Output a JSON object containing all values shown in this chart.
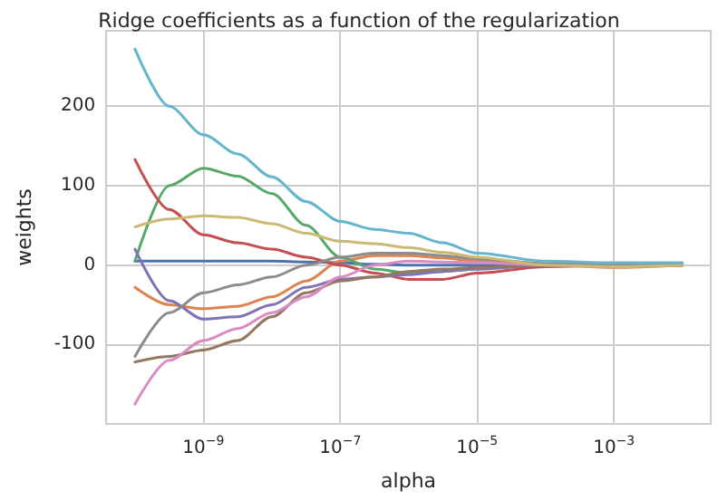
{
  "chart_data": {
    "type": "line",
    "title": "Ridge coefficients as a function of the regularization",
    "xlabel": "alpha",
    "ylabel": "weights",
    "log": "x",
    "grid": true,
    "marker": "none",
    "line_style": "solid",
    "x": [
      1e-10,
      3.16e-10,
      1e-09,
      3.16e-09,
      1e-08,
      3.16e-08,
      1e-07,
      3.16e-07,
      1e-06,
      3.16e-06,
      1e-05,
      0.0001,
      0.001,
      0.01
    ],
    "xlim": [
      3.8e-11,
      0.026
    ],
    "xticks": [
      {
        "value": 1e-09,
        "label": "10$^{−9}$"
      },
      {
        "value": 1e-07,
        "label": "10$^{−7}$"
      },
      {
        "value": 1e-05,
        "label": "10$^{−5}$"
      },
      {
        "value": 0.001,
        "label": "10$^{−3}$"
      }
    ],
    "ylim": [
      -200,
      295
    ],
    "yticks": [
      -100,
      0,
      100,
      200
    ],
    "series": [
      {
        "color": "#4c72b0",
        "values": [
          5,
          5,
          5,
          5,
          5,
          4,
          3,
          1,
          0,
          0,
          0,
          1,
          1,
          1
        ]
      },
      {
        "color": "#dd8452",
        "values": [
          -28,
          -50,
          -55,
          -52,
          -40,
          -20,
          5,
          12,
          12,
          9,
          5,
          0,
          -3,
          0
        ]
      },
      {
        "color": "#55a868",
        "values": [
          5,
          100,
          122,
          112,
          90,
          50,
          10,
          -5,
          -10,
          -8,
          -5,
          0,
          0,
          0
        ]
      },
      {
        "color": "#c44e52",
        "values": [
          133,
          70,
          38,
          28,
          20,
          10,
          0,
          -10,
          -18,
          -18,
          -10,
          -2,
          0,
          0
        ]
      },
      {
        "color": "#8172b3",
        "values": [
          20,
          -45,
          -68,
          -65,
          -50,
          -28,
          -18,
          -15,
          -12,
          -8,
          -5,
          0,
          0,
          0
        ]
      },
      {
        "color": "#937860",
        "values": [
          -122,
          -115,
          -107,
          -95,
          -65,
          -35,
          -20,
          -15,
          -8,
          -5,
          -3,
          0,
          0,
          0
        ]
      },
      {
        "color": "#da8bc3",
        "values": [
          -175,
          -120,
          -95,
          -80,
          -60,
          -40,
          -15,
          0,
          5,
          4,
          3,
          0,
          0,
          0
        ]
      },
      {
        "color": "#8c8c8c",
        "values": [
          -115,
          -60,
          -35,
          -25,
          -15,
          0,
          10,
          15,
          15,
          12,
          8,
          2,
          0,
          0
        ]
      },
      {
        "color": "#ccb974",
        "values": [
          48,
          58,
          62,
          60,
          52,
          40,
          30,
          27,
          22,
          16,
          10,
          0,
          -2,
          0
        ]
      },
      {
        "color": "#64b5cd",
        "values": [
          272,
          200,
          164,
          140,
          111,
          80,
          55,
          45,
          40,
          28,
          15,
          5,
          3,
          3
        ]
      }
    ]
  }
}
